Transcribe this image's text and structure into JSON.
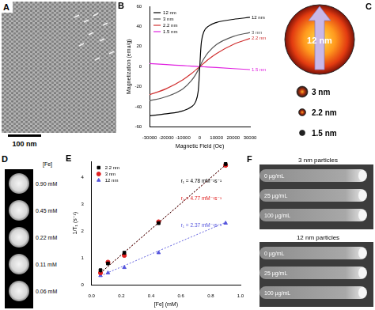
{
  "panel_a": {
    "label": "A",
    "scale_bar": "100 nm"
  },
  "panel_b": {
    "label": "B"
  },
  "panel_c": {
    "label": "C",
    "particles": [
      "12 nm",
      "3 nm",
      "2.2 nm",
      "1.5 nm"
    ]
  },
  "panel_d": {
    "label": "D",
    "header": "[Fe]",
    "concentrations": [
      "0.90 mM",
      "0.45 mM",
      "0.22 mM",
      "0.11 mM",
      "0.06 mM"
    ]
  },
  "panel_e": {
    "label": "E"
  },
  "panel_f": {
    "label": "F",
    "images": [
      {
        "title": "3 nm particles",
        "rows": [
          "0 µg/mL",
          "25 µg/mL",
          "100 µg/mL"
        ]
      },
      {
        "title": "12 nm particles",
        "rows": [
          "0 µg/mL",
          "25 µg/mL",
          "100 µg/mL"
        ]
      }
    ]
  },
  "chart_data": [
    {
      "type": "line",
      "x_label": "Magnetic Field (Oe)",
      "y_label": "Magnetization (emu/g)",
      "x": [
        -30000,
        -20000,
        -10000,
        -5000,
        -2500,
        -1000,
        -500,
        0,
        500,
        1000,
        2500,
        5000,
        10000,
        20000,
        30000
      ],
      "series": [
        {
          "name": "12 nm",
          "color": "#000000",
          "values": [
            -49,
            -47,
            -44,
            -40,
            -35,
            -25,
            -15,
            0,
            15,
            25,
            35,
            40,
            44,
            47,
            49
          ]
        },
        {
          "name": "3 nm",
          "color": "#555555",
          "values": [
            -34,
            -30,
            -22,
            -14,
            -8,
            -3.5,
            -1.8,
            0,
            1.8,
            3.5,
            8,
            14,
            22,
            30,
            34
          ]
        },
        {
          "name": "2.2 nm",
          "color": "#d03030",
          "values": [
            -28,
            -22,
            -13,
            -7,
            -3.5,
            -1.4,
            -0.7,
            0,
            0.7,
            1.4,
            3.5,
            7,
            13,
            22,
            28
          ]
        },
        {
          "name": "1.5 nm",
          "color": "#e020e0",
          "values": [
            3,
            2,
            1,
            0.5,
            0.25,
            0.1,
            0.05,
            0,
            -0.05,
            -0.1,
            -0.25,
            -0.5,
            -1,
            -2,
            -3
          ]
        }
      ],
      "xlim": [
        -30000,
        30000
      ],
      "xticks": [
        -30000,
        -20000,
        -10000,
        0,
        10000,
        20000,
        30000
      ],
      "ylim": [
        -60,
        60
      ],
      "yticks": [
        -60,
        -40,
        -20,
        0,
        20,
        40,
        60
      ],
      "grid": false,
      "legend": "upper left",
      "annotations": [
        "12 nm",
        "3 nm",
        "2.2 nm",
        "1.5 nm"
      ]
    },
    {
      "type": "scatter",
      "x_label": "[Fe] (mM)",
      "y_label": "1/T₁ (s⁻¹)",
      "x": [
        0.06,
        0.11,
        0.22,
        0.45,
        0.9
      ],
      "series": [
        {
          "name": "2.2 nm",
          "color": "#000000",
          "marker": "square",
          "values": [
            0.55,
            0.8,
            1.2,
            2.3,
            4.5
          ],
          "fit_values": [
            0.45,
            0.69,
            1.22,
            2.32,
            4.47
          ]
        },
        {
          "name": "3 nm",
          "color": "#e02020",
          "marker": "circle",
          "values": [
            0.45,
            0.85,
            1.1,
            2.35,
            4.45
          ],
          "fit_values": [
            0.45,
            0.69,
            1.21,
            2.31,
            4.46
          ]
        },
        {
          "name": "12 nm",
          "color": "#5555dd",
          "marker": "triangle",
          "values": [
            0.35,
            0.45,
            0.65,
            1.2,
            2.3
          ],
          "fit_values": [
            0.34,
            0.46,
            0.72,
            1.27,
            2.33
          ]
        }
      ],
      "xlim": [
        0,
        1
      ],
      "xticks": [
        {
          "value": 0,
          "label": "0.0"
        },
        0.2,
        0.4,
        0.6,
        0.8,
        {
          "value": 1,
          "label": "1.0"
        }
      ],
      "ylim": [
        0,
        4.6
      ],
      "yticks": [
        0,
        1,
        2,
        3,
        4
      ],
      "grid": false,
      "legend": "upper left",
      "annotations": [
        "r₁ = 4.78 mM⁻¹s⁻¹",
        "r₁ = 4.77 mM⁻¹s⁻¹",
        "r₁ = 2.37 mM⁻¹s⁻¹"
      ]
    }
  ]
}
